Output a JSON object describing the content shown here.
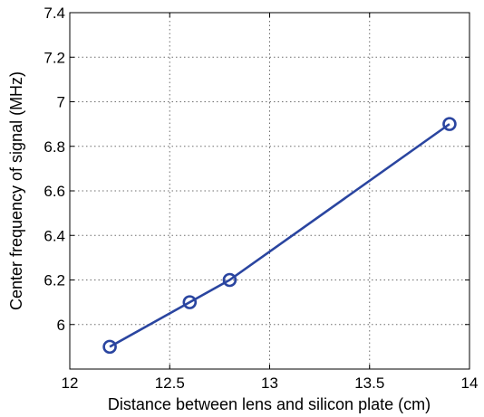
{
  "chart_data": {
    "type": "line",
    "title": "",
    "xlabel": "Distance between lens and silicon plate (cm)",
    "ylabel": "Center frequency of signal (MHz)",
    "xlim": [
      12,
      14
    ],
    "ylim": [
      5.8,
      7.4
    ],
    "x_ticks": [
      "12",
      "12.5",
      "13",
      "13.5",
      "14"
    ],
    "y_ticks": [
      "6",
      "6.2",
      "6.4",
      "6.6",
      "6.8",
      "7",
      "7.2",
      "7.4"
    ],
    "grid": true,
    "series": [
      {
        "marker": "circle",
        "color": "#2a45a0",
        "x": [
          12.2,
          12.6,
          12.8,
          13.9
        ],
        "y": [
          5.9,
          6.1,
          6.2,
          6.9
        ]
      }
    ]
  }
}
